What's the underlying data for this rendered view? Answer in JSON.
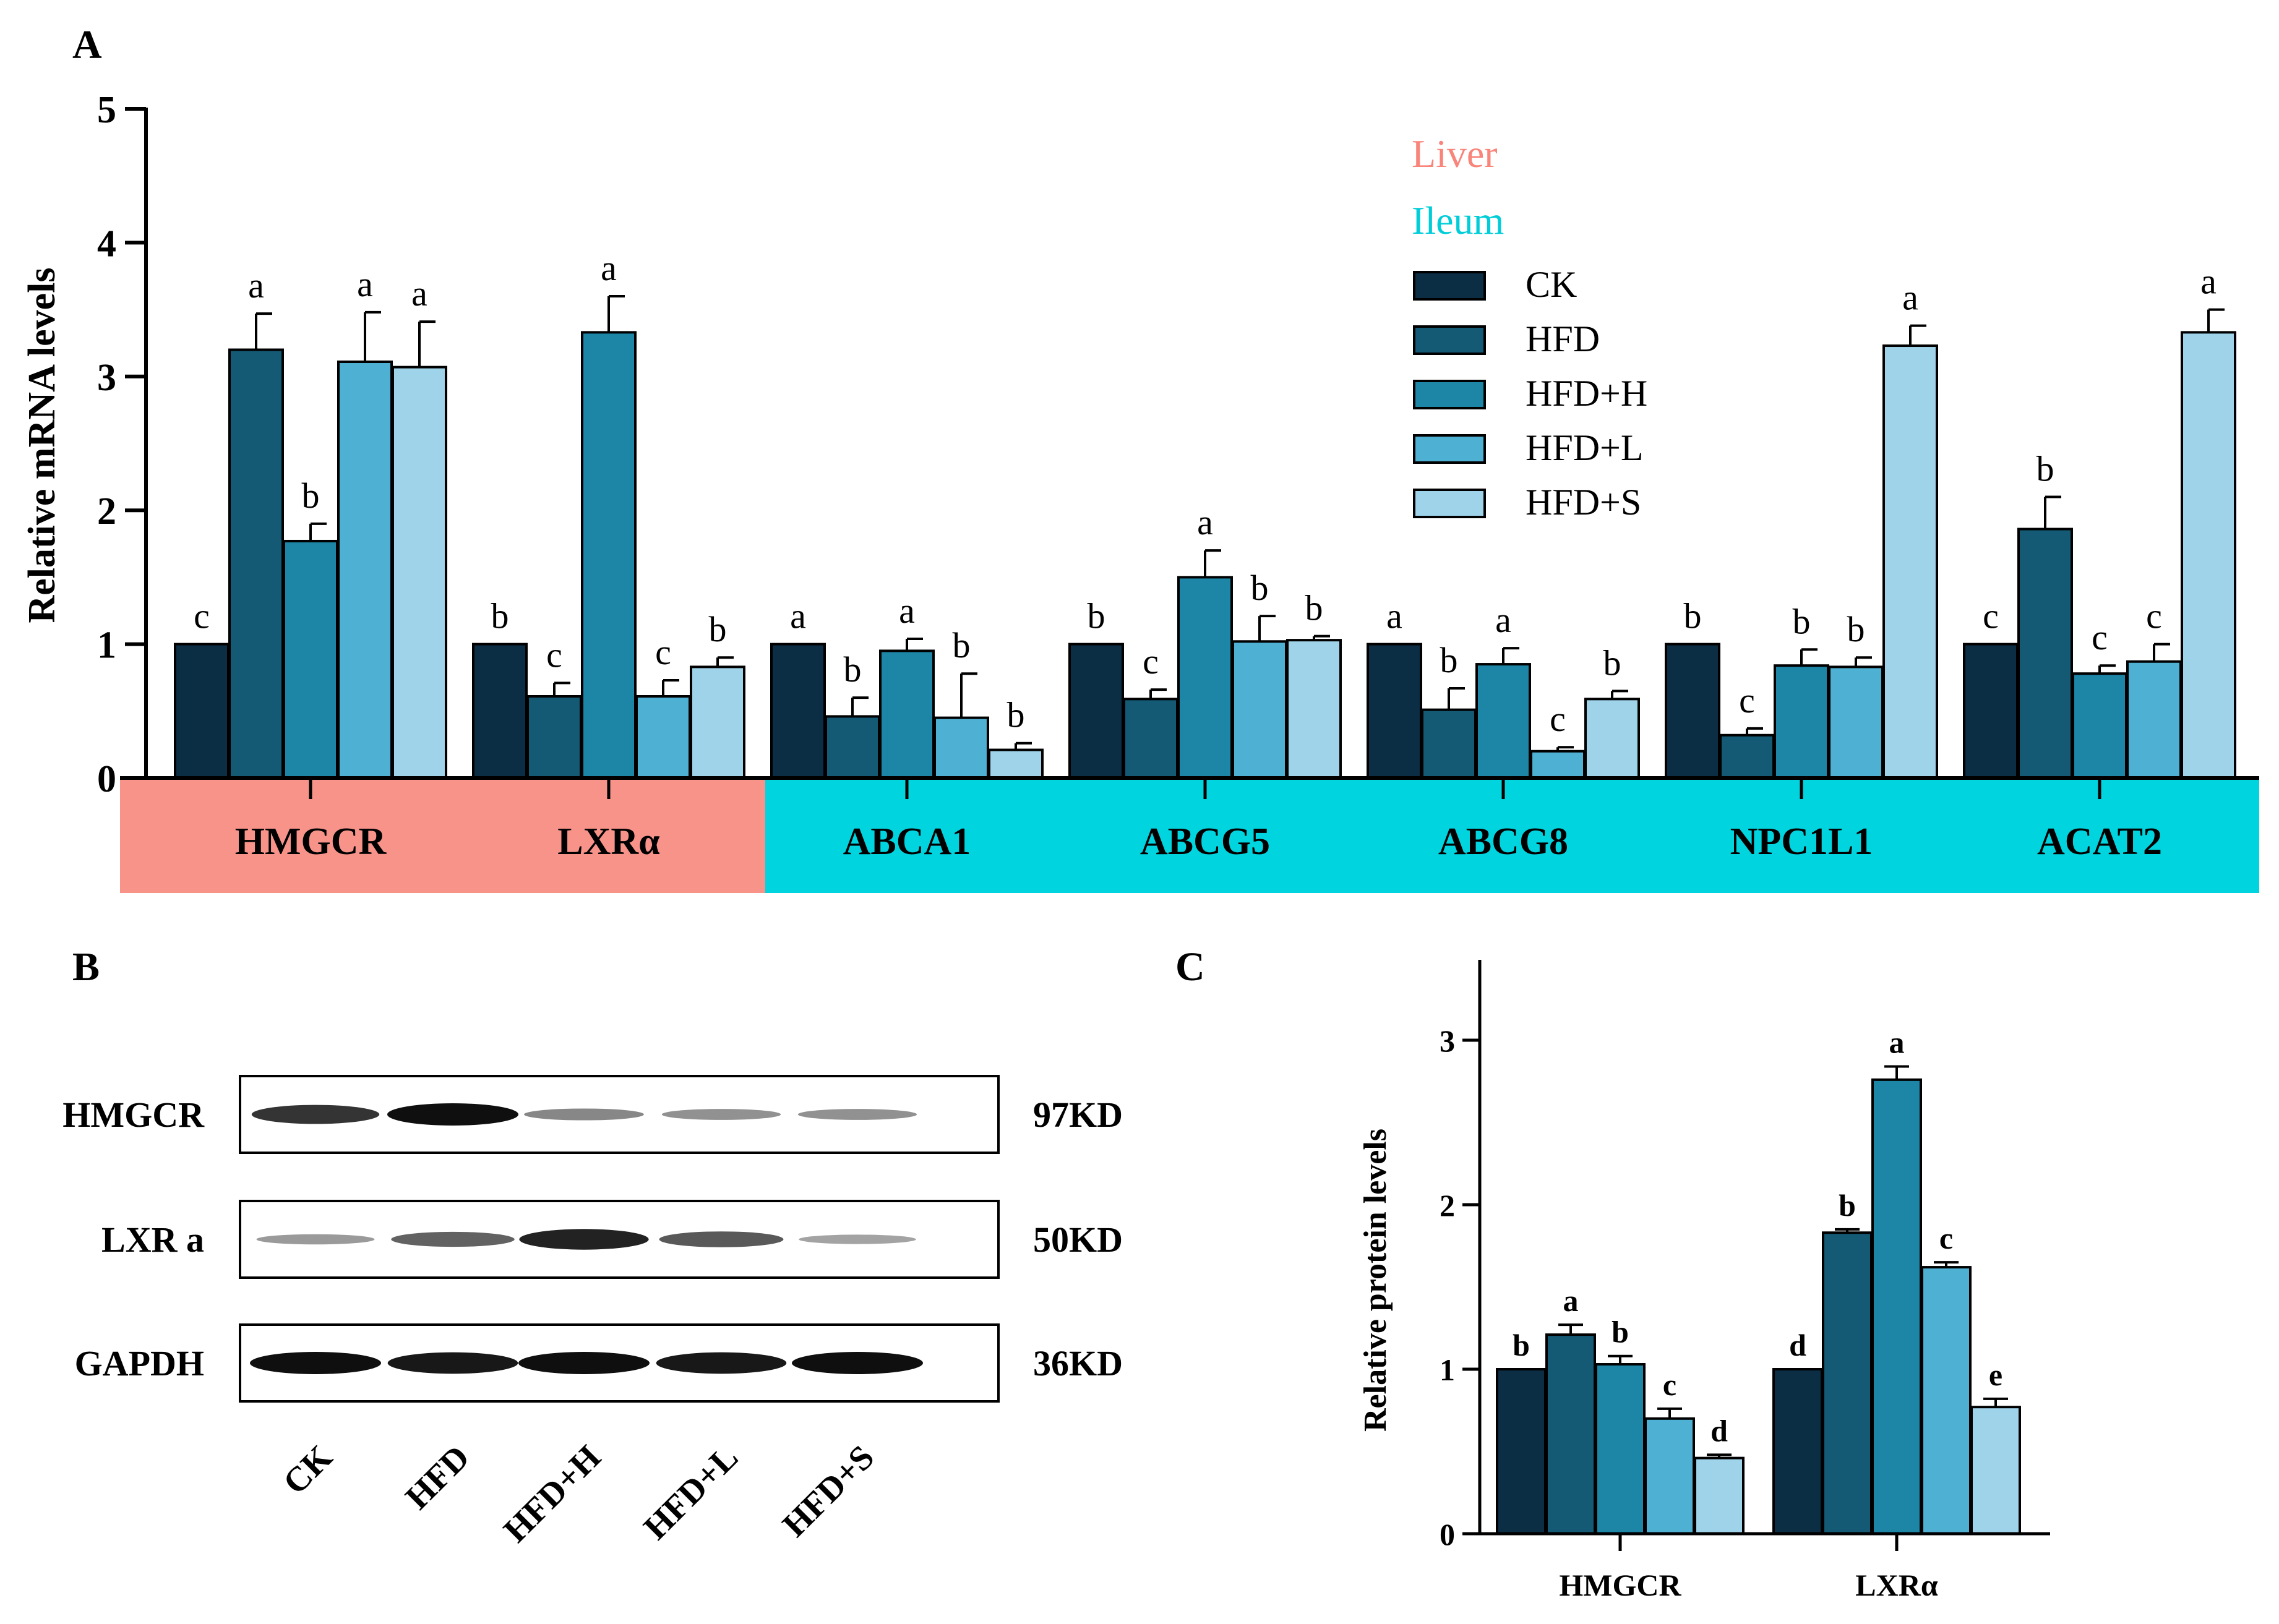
{
  "panels": {
    "a": "A",
    "b": "B",
    "c": "C"
  },
  "colors": {
    "series": [
      "#0b2e45",
      "#145a74",
      "#1d86a6",
      "#4eb0d2",
      "#9fd3ea"
    ],
    "liver": "#f8938a",
    "ileum": "#00d4de",
    "liver_text": "#f8847a",
    "ileum_text": "#00cdd8"
  },
  "chart_data": [
    {
      "type": "bar",
      "title": "",
      "xlabel": "",
      "ylabel": "Relative mRNA levels",
      "ylim": [
        0,
        5
      ],
      "yticks": [
        "0",
        "1",
        "2",
        "3",
        "4",
        "5"
      ],
      "categories": [
        "HMGCR",
        "LXRα",
        "ABCA1",
        "ABCG5",
        "ABCG8",
        "NPC1L1",
        "ACAT2"
      ],
      "series": [
        {
          "name": "CK",
          "values": [
            1,
            1,
            1,
            1,
            1,
            1,
            1
          ],
          "errors": [
            0,
            0,
            0,
            0,
            0,
            0,
            0
          ],
          "letters": [
            "c",
            "b",
            "a",
            "b",
            "a",
            "b",
            "c"
          ]
        },
        {
          "name": "HFD",
          "values": [
            3.2,
            0.61,
            0.46,
            0.59,
            0.51,
            0.32,
            1.86
          ],
          "errors": [
            0.27,
            0.1,
            0.14,
            0.07,
            0.16,
            0.05,
            0.24
          ],
          "letters": [
            "a",
            "c",
            "b",
            "c",
            "b",
            "c",
            "b"
          ]
        },
        {
          "name": "HFD+H",
          "values": [
            1.77,
            3.33,
            0.95,
            1.5,
            0.85,
            0.84,
            0.78
          ],
          "errors": [
            0.13,
            0.27,
            0.09,
            0.2,
            0.12,
            0.12,
            0.06
          ],
          "letters": [
            "b",
            "a",
            "a",
            "a",
            "a",
            "b",
            "c"
          ]
        },
        {
          "name": "HFD+L",
          "values": [
            3.11,
            0.61,
            0.45,
            1.02,
            0.2,
            0.83,
            0.87
          ],
          "errors": [
            0.37,
            0.12,
            0.33,
            0.19,
            0.03,
            0.07,
            0.13
          ],
          "letters": [
            "a",
            "c",
            "b",
            "b",
            "c",
            "b",
            "c"
          ]
        },
        {
          "name": "HFD+S",
          "values": [
            3.07,
            0.83,
            0.21,
            1.03,
            0.59,
            3.23,
            3.33
          ],
          "errors": [
            0.34,
            0.07,
            0.05,
            0.03,
            0.06,
            0.15,
            0.17
          ],
          "letters": [
            "a",
            "b",
            "b",
            "b",
            "b",
            "a",
            "a"
          ]
        }
      ],
      "tissue_groups": [
        {
          "label": "Liver",
          "categories": [
            "HMGCR",
            "LXRα"
          ]
        },
        {
          "label": "Ileum",
          "categories": [
            "ABCA1",
            "ABCG5",
            "ABCG8",
            "NPC1L1",
            "ACAT2"
          ]
        }
      ],
      "legend": [
        "CK",
        "HFD",
        "HFD+H",
        "HFD+L",
        "HFD+S"
      ],
      "legend_position": "top-right"
    },
    {
      "type": "bar",
      "title": "",
      "xlabel": "",
      "ylabel": "Relative protein levels",
      "ylim": [
        0,
        3.5
      ],
      "yticks": [
        "0",
        "1",
        "2",
        "3"
      ],
      "categories": [
        "HMGCR",
        "LXRα"
      ],
      "series": [
        {
          "name": "CK",
          "values": [
            1,
            1
          ],
          "errors": [
            0,
            0
          ],
          "letters": [
            "b",
            "d"
          ]
        },
        {
          "name": "HFD",
          "values": [
            1.21,
            1.83
          ],
          "errors": [
            0.06,
            0.02
          ],
          "letters": [
            "a",
            "b"
          ]
        },
        {
          "name": "HFD+H",
          "values": [
            1.03,
            2.76
          ],
          "errors": [
            0.05,
            0.08
          ],
          "letters": [
            "b",
            "a"
          ]
        },
        {
          "name": "HFD+L",
          "values": [
            0.7,
            1.62
          ],
          "errors": [
            0.06,
            0.03
          ],
          "letters": [
            "c",
            "c"
          ]
        },
        {
          "name": "HFD+S",
          "values": [
            0.46,
            0.77
          ],
          "errors": [
            0.02,
            0.05
          ],
          "letters": [
            "d",
            "e"
          ]
        }
      ]
    }
  ],
  "blot": {
    "rows": [
      {
        "label": "HMGCR",
        "size": "97KD",
        "intensity": [
          0.8,
          1.0,
          0.35,
          0.3,
          0.3
        ]
      },
      {
        "label": "LXR a",
        "size": "50KD",
        "intensity": [
          0.25,
          0.55,
          0.9,
          0.6,
          0.2
        ]
      },
      {
        "label": "GAPDH",
        "size": "36KD",
        "intensity": [
          1.0,
          0.95,
          1.0,
          0.95,
          1.0
        ]
      }
    ],
    "lanes": [
      "CK",
      "HFD",
      "HFD+H",
      "HFD+L",
      "HFD+S"
    ]
  }
}
